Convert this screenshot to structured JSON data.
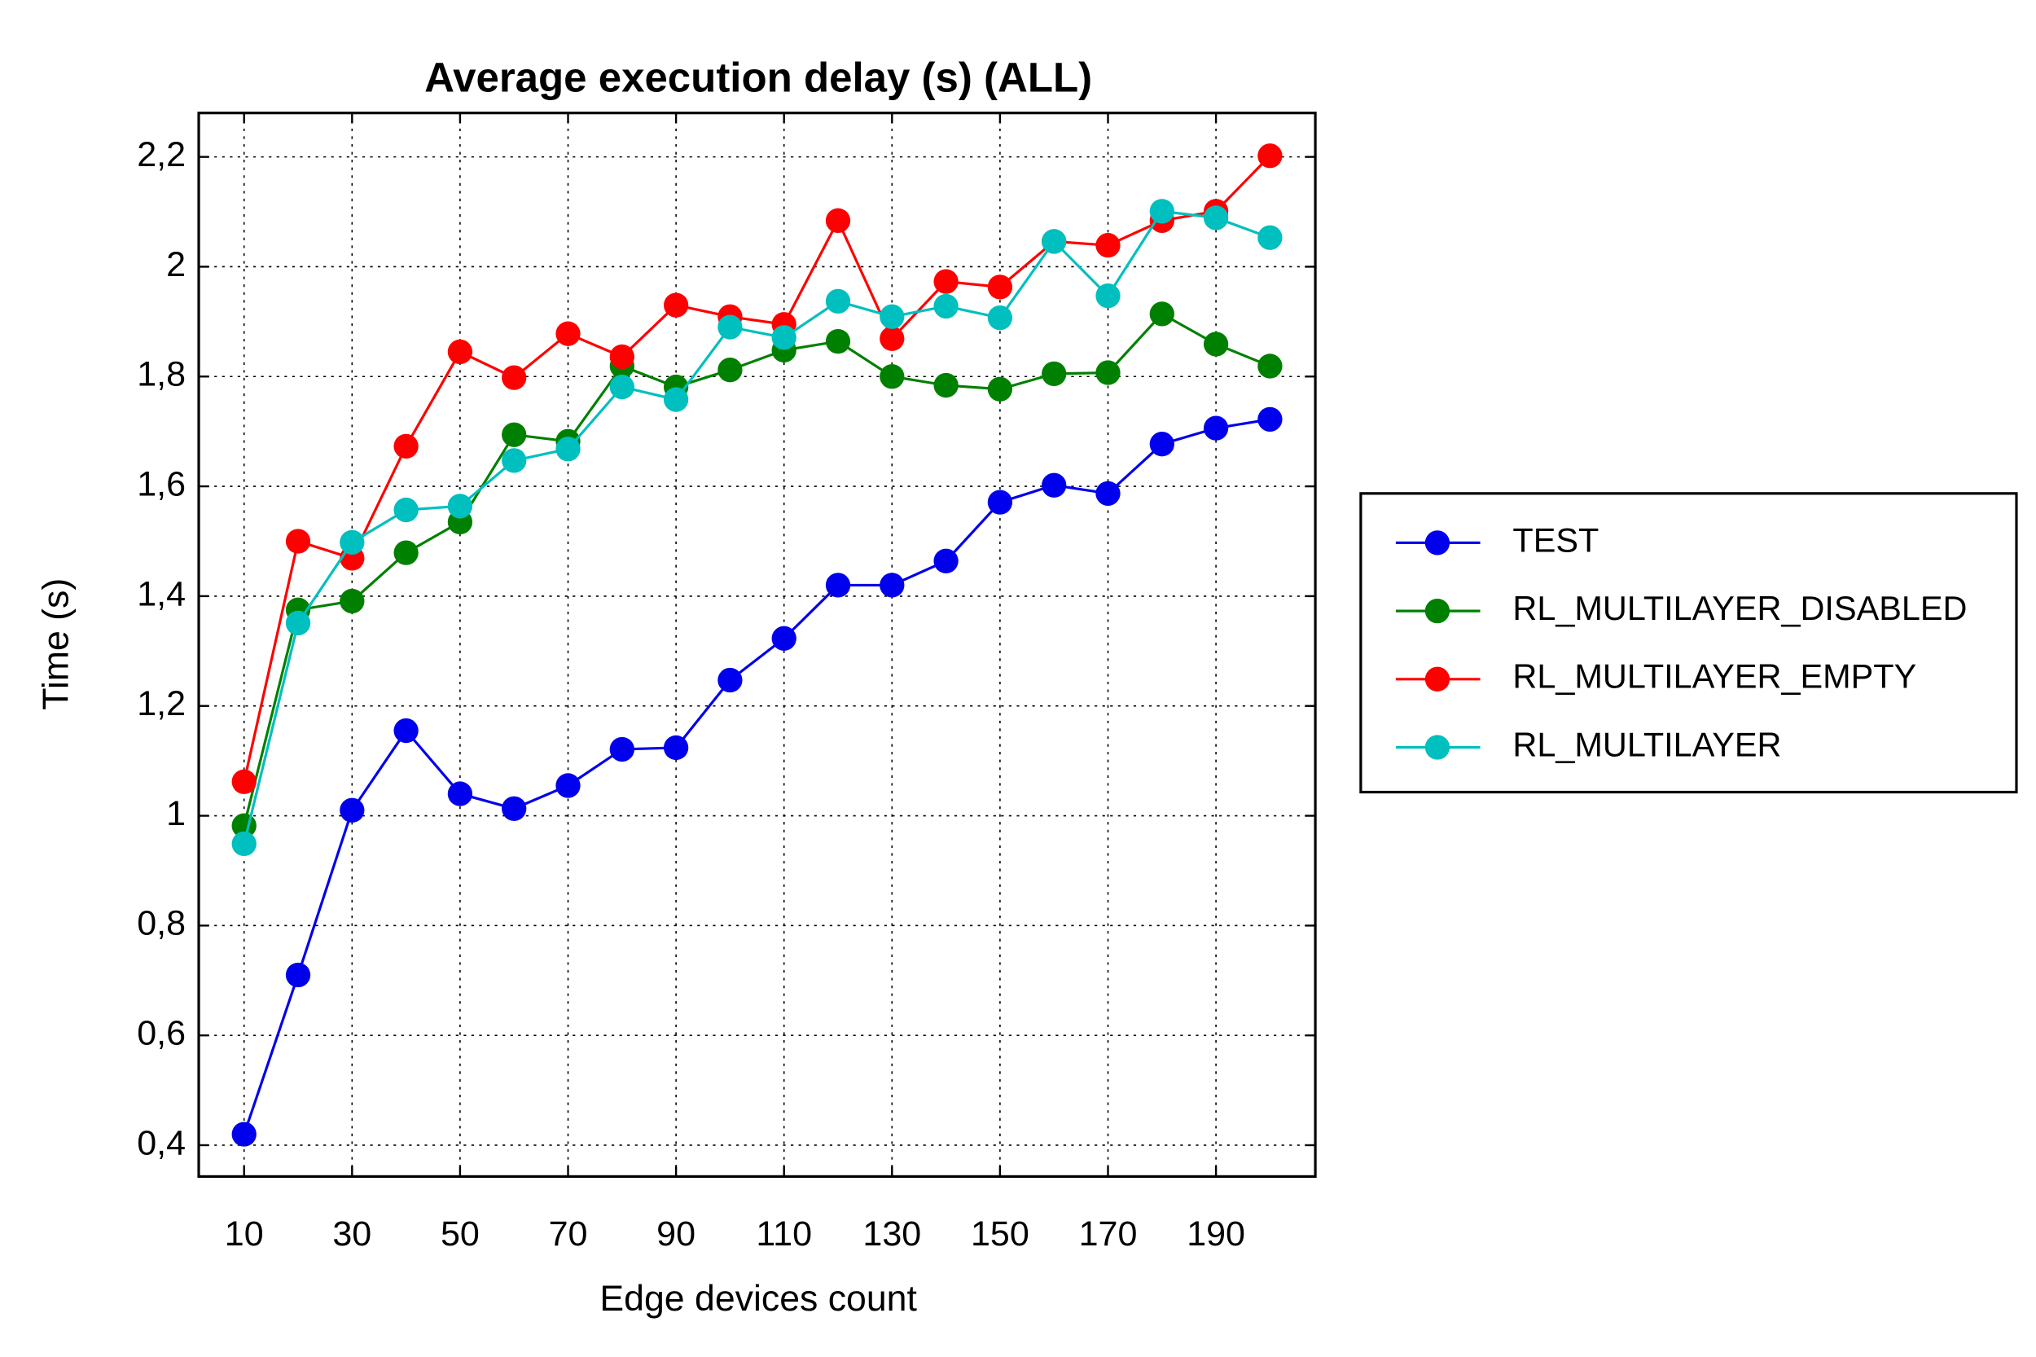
{
  "chart_data": {
    "type": "line",
    "title": "Average execution delay (s) (ALL)",
    "x_label": "Edge devices count",
    "y_label": "Time (s)",
    "x": [
      10,
      20,
      30,
      40,
      50,
      60,
      70,
      80,
      90,
      100,
      110,
      120,
      130,
      140,
      150,
      160,
      170,
      180,
      190,
      200
    ],
    "series": [
      {
        "name": "TEST",
        "color": "#0000ee",
        "values": [
          0.42,
          0.71,
          1.01,
          1.155,
          1.04,
          1.013,
          1.055,
          1.121,
          1.124,
          1.247,
          1.323,
          1.42,
          1.42,
          1.464,
          1.571,
          1.602,
          1.587,
          1.677,
          1.706,
          1.722
        ]
      },
      {
        "name": "RL_MULTILAYER_DISABLED",
        "color": "#008000",
        "values": [
          0.982,
          1.375,
          1.391,
          1.479,
          1.535,
          1.694,
          1.682,
          1.819,
          1.781,
          1.812,
          1.848,
          1.864,
          1.8,
          1.784,
          1.777,
          1.805,
          1.807,
          1.914,
          1.859,
          1.819
        ]
      },
      {
        "name": "RL_MULTILAYER_EMPTY",
        "color": "#ff0000",
        "values": [
          1.062,
          1.5,
          1.469,
          1.673,
          1.845,
          1.798,
          1.878,
          1.836,
          1.93,
          1.909,
          1.895,
          2.084,
          1.869,
          1.973,
          1.963,
          2.046,
          2.039,
          2.084,
          2.101,
          2.202
        ]
      },
      {
        "name": "RL_MULTILAYER",
        "color": "#00bfbf",
        "values": [
          0.949,
          1.351,
          1.498,
          1.557,
          1.564,
          1.647,
          1.668,
          1.781,
          1.758,
          1.89,
          1.871,
          1.937,
          1.909,
          1.928,
          1.907,
          2.046,
          1.947,
          2.101,
          2.089,
          2.053
        ]
      }
    ],
    "xlim": [
      1.6,
      208.4
    ],
    "ylim": [
      0.343,
      2.28
    ],
    "xticks": [
      10,
      30,
      50,
      70,
      90,
      110,
      130,
      150,
      170,
      190
    ],
    "yticks": [
      {
        "value": 0.4,
        "label": "0,4"
      },
      {
        "value": 0.6,
        "label": "0,6"
      },
      {
        "value": 0.8,
        "label": "0,8"
      },
      1,
      {
        "value": 1.2,
        "label": "1,2"
      },
      {
        "value": 1.4,
        "label": "1,4"
      },
      {
        "value": 1.6,
        "label": "1,6"
      },
      {
        "value": 1.8,
        "label": "1,8"
      },
      2,
      {
        "value": 2.2,
        "label": "2,2"
      }
    ],
    "grid": true,
    "legend": "right"
  }
}
